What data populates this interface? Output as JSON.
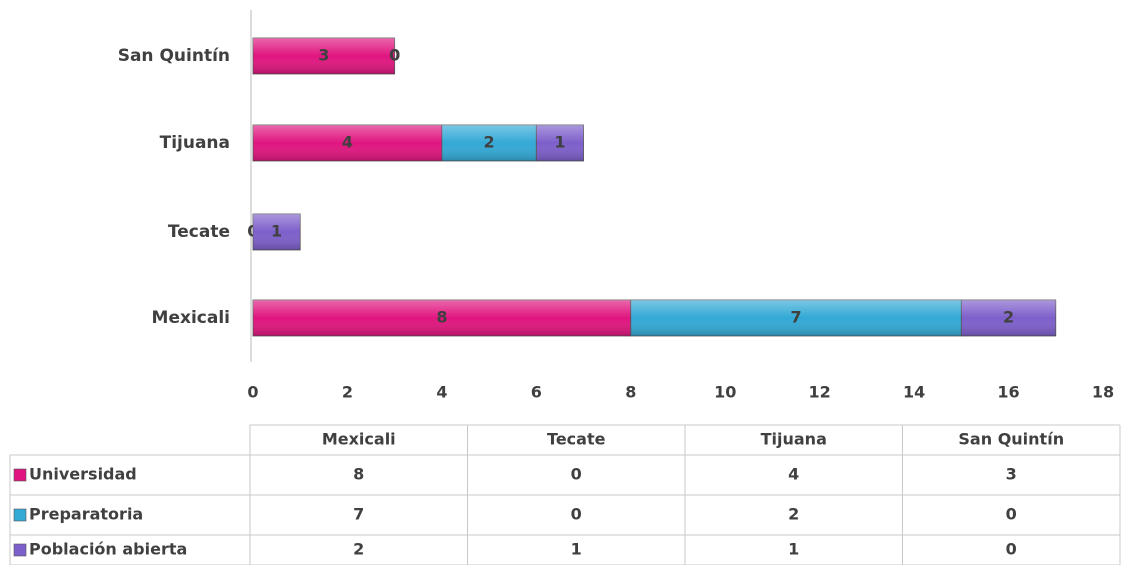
{
  "chart_data": {
    "type": "bar",
    "orientation": "horizontal",
    "stacked": true,
    "categories": [
      "Mexicali",
      "Tecate",
      "Tijuana",
      "San Quintín"
    ],
    "series": [
      {
        "name": "Universidad",
        "color": "#e0157f",
        "values": [
          8,
          0,
          4,
          3
        ]
      },
      {
        "name": "Preparatoria",
        "color": "#33a9d6",
        "values": [
          7,
          0,
          2,
          0
        ]
      },
      {
        "name": "Población abierta",
        "color": "#7d5fcb",
        "values": [
          2,
          1,
          1,
          0
        ]
      }
    ],
    "xlim": [
      0,
      18
    ],
    "xticks": [
      0,
      2,
      4,
      6,
      8,
      10,
      12,
      14,
      16,
      18
    ],
    "data_table": true
  }
}
